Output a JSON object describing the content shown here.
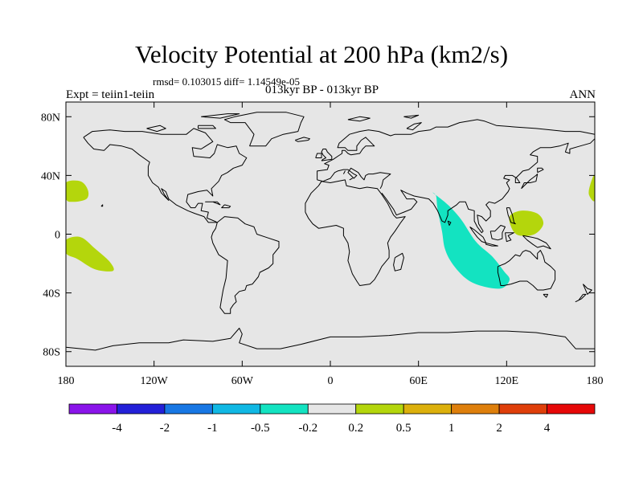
{
  "title": "Velocity Potential at 200 hPa (km2/s)",
  "stats": "rmsd= 0.103015 diff= 1.14549e-05",
  "experiment": "Expt = teiin1-teiin",
  "period": "013kyr BP - 013kyr BP",
  "season": "ANN",
  "map": {
    "lon_range": [
      -180,
      180
    ],
    "lat_range": [
      -90,
      90
    ],
    "background": "#e6e6e6",
    "x_ticks": [
      {
        "value": -180,
        "label": "180"
      },
      {
        "value": -120,
        "label": "120W"
      },
      {
        "value": -60,
        "label": "60W"
      },
      {
        "value": 0,
        "label": "0"
      },
      {
        "value": 60,
        "label": "60E"
      },
      {
        "value": 120,
        "label": "120E"
      },
      {
        "value": 180,
        "label": "180"
      }
    ],
    "y_ticks": [
      {
        "value": 80,
        "label": "80N"
      },
      {
        "value": 40,
        "label": "40N"
      },
      {
        "value": 0,
        "label": "0"
      },
      {
        "value": -40,
        "label": "40S"
      },
      {
        "value": -80,
        "label": "80S"
      }
    ],
    "anomalies": [
      {
        "name": "north-pacific-west-positive",
        "class": "0.2 to 0.5",
        "color": "#b4d60c",
        "points": [
          [
            -180,
            35
          ],
          [
            -170,
            36
          ],
          [
            -165,
            30
          ],
          [
            -166,
            24
          ],
          [
            -175,
            22
          ],
          [
            -180,
            24
          ]
        ]
      },
      {
        "name": "south-pacific-west-positive",
        "class": "0.2 to 0.5",
        "color": "#b4d60c",
        "points": [
          [
            -180,
            -4
          ],
          [
            -170,
            -2
          ],
          [
            -160,
            -10
          ],
          [
            -150,
            -19
          ],
          [
            -148,
            -25
          ],
          [
            -160,
            -24
          ],
          [
            -172,
            -17
          ],
          [
            -180,
            -13
          ]
        ]
      },
      {
        "name": "date-line-east-positive",
        "class": "0.2 to 0.5",
        "color": "#b4d60c",
        "points": [
          [
            180,
            40
          ],
          [
            177,
            34
          ],
          [
            176,
            27
          ],
          [
            180,
            23
          ]
        ]
      },
      {
        "name": "maritime-continent-positive",
        "class": "0.2 to 0.5",
        "color": "#b4d60c",
        "points": [
          [
            122,
            12
          ],
          [
            130,
            16
          ],
          [
            141,
            14
          ],
          [
            145,
            7
          ],
          [
            139,
            0
          ],
          [
            129,
            -1
          ],
          [
            124,
            3
          ]
        ]
      },
      {
        "name": "indian-ocean-negative",
        "class": "-0.5 to -0.2",
        "color": "#13e3c1",
        "points": [
          [
            70,
            28
          ],
          [
            80,
            20
          ],
          [
            89,
            10
          ],
          [
            99,
            -5
          ],
          [
            110,
            -15
          ],
          [
            118,
            -25
          ],
          [
            122,
            -31
          ],
          [
            116,
            -37
          ],
          [
            102,
            -35
          ],
          [
            92,
            -30
          ],
          [
            83,
            -20
          ],
          [
            78,
            -10
          ],
          [
            76,
            2
          ],
          [
            73,
            17
          ],
          [
            72,
            26
          ]
        ]
      }
    ]
  },
  "colorbar": {
    "colors": [
      "#8a14ea",
      "#2320d8",
      "#1877e4",
      "#10b8e4",
      "#13e3c1",
      "#e6e6e6",
      "#b4d60c",
      "#dcb00c",
      "#de7f0c",
      "#df3f0a",
      "#e60808"
    ],
    "labels": [
      "-4",
      "-2",
      "-1",
      "-0.5",
      "-0.2",
      "0.2",
      "0.5",
      "1",
      "2",
      "4"
    ]
  }
}
